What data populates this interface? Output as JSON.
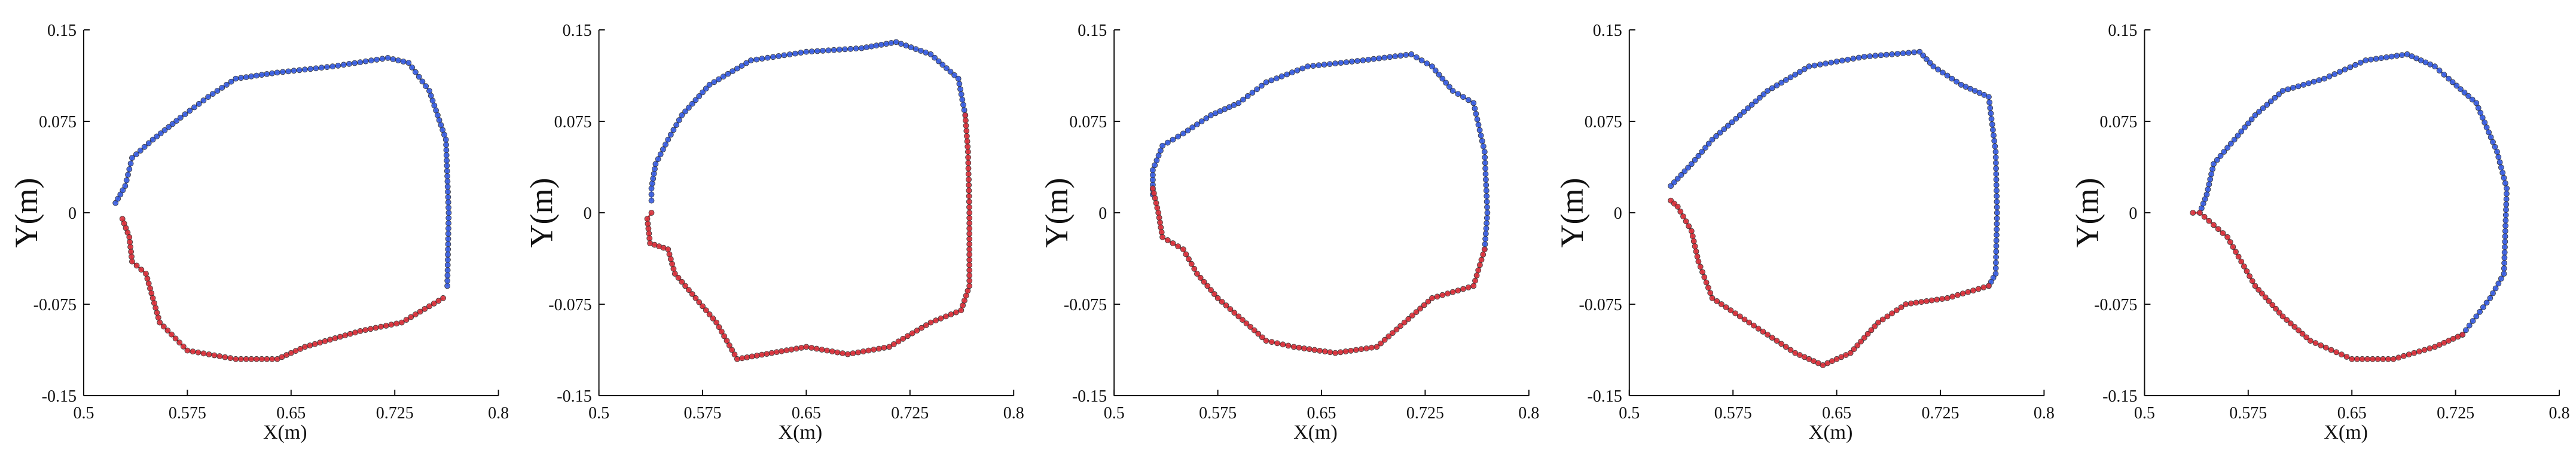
{
  "colors": {
    "upper": "#3b5fe0",
    "lower": "#d8323c",
    "axis": "#111111"
  },
  "chart_data": [
    {
      "type": "scatter",
      "xlabel": "X(m)",
      "ylabel": "Y(m)",
      "xlim": [
        0.5,
        0.8
      ],
      "ylim": [
        -0.15,
        0.15
      ],
      "xticks": [
        "0.5",
        "0.575",
        "0.65",
        "0.725",
        "0.8"
      ],
      "yticks": [
        "0.15",
        "0.075",
        "0",
        "-0.075",
        "-0.15"
      ],
      "series": [
        {
          "color": "upper",
          "points": [
            [
              0.523,
              0.008
            ],
            [
              0.53,
              0.022
            ],
            [
              0.535,
              0.045
            ],
            [
              0.55,
              0.06
            ],
            [
              0.57,
              0.078
            ],
            [
              0.59,
              0.095
            ],
            [
              0.61,
              0.11
            ],
            [
              0.64,
              0.115
            ],
            [
              0.68,
              0.12
            ],
            [
              0.72,
              0.127
            ],
            [
              0.735,
              0.123
            ],
            [
              0.75,
              0.1
            ],
            [
              0.762,
              0.06
            ],
            [
              0.764,
              0.0
            ],
            [
              0.763,
              -0.06
            ]
          ]
        },
        {
          "color": "lower",
          "points": [
            [
              0.528,
              -0.005
            ],
            [
              0.533,
              -0.02
            ],
            [
              0.535,
              -0.04
            ],
            [
              0.545,
              -0.05
            ],
            [
              0.55,
              -0.07
            ],
            [
              0.555,
              -0.09
            ],
            [
              0.575,
              -0.113
            ],
            [
              0.61,
              -0.12
            ],
            [
              0.64,
              -0.12
            ],
            [
              0.66,
              -0.11
            ],
            [
              0.7,
              -0.097
            ],
            [
              0.73,
              -0.09
            ],
            [
              0.76,
              -0.07
            ]
          ]
        }
      ]
    },
    {
      "type": "scatter",
      "xlabel": "X(m)",
      "ylabel": "Y(m)",
      "xlim": [
        0.5,
        0.8
      ],
      "ylim": [
        -0.15,
        0.15
      ],
      "xticks": [
        "0.5",
        "0.575",
        "0.65",
        "0.725",
        "0.8"
      ],
      "yticks": [
        "0.15",
        "0.075",
        "0",
        "-0.075",
        "-0.15"
      ],
      "series": [
        {
          "color": "upper",
          "points": [
            [
              0.538,
              0.01
            ],
            [
              0.538,
              0.02
            ],
            [
              0.541,
              0.04
            ],
            [
              0.55,
              0.06
            ],
            [
              0.56,
              0.08
            ],
            [
              0.58,
              0.105
            ],
            [
              0.61,
              0.125
            ],
            [
              0.65,
              0.132
            ],
            [
              0.69,
              0.135
            ],
            [
              0.715,
              0.14
            ],
            [
              0.74,
              0.13
            ],
            [
              0.76,
              0.11
            ],
            [
              0.765,
              0.08
            ]
          ]
        },
        {
          "color": "lower",
          "points": [
            [
              0.538,
              0.0
            ],
            [
              0.535,
              -0.005
            ],
            [
              0.537,
              -0.025
            ],
            [
              0.55,
              -0.03
            ],
            [
              0.555,
              -0.05
            ],
            [
              0.57,
              -0.07
            ],
            [
              0.585,
              -0.09
            ],
            [
              0.6,
              -0.12
            ],
            [
              0.625,
              -0.115
            ],
            [
              0.65,
              -0.11
            ],
            [
              0.68,
              -0.116
            ],
            [
              0.71,
              -0.11
            ],
            [
              0.74,
              -0.09
            ],
            [
              0.762,
              -0.08
            ],
            [
              0.768,
              -0.06
            ],
            [
              0.768,
              0.0
            ],
            [
              0.767,
              0.05
            ],
            [
              0.765,
              0.08
            ]
          ]
        }
      ]
    },
    {
      "type": "scatter",
      "xlabel": "X(m)",
      "ylabel": "Y(m)",
      "xlim": [
        0.5,
        0.8
      ],
      "ylim": [
        -0.15,
        0.15
      ],
      "xticks": [
        "0.5",
        "0.575",
        "0.65",
        "0.725",
        "0.8"
      ],
      "yticks": [
        "0.15",
        "0.075",
        "0",
        "-0.075",
        "-0.15"
      ],
      "series": [
        {
          "color": "upper",
          "points": [
            [
              0.528,
              0.015
            ],
            [
              0.528,
              0.035
            ],
            [
              0.535,
              0.055
            ],
            [
              0.55,
              0.065
            ],
            [
              0.57,
              0.08
            ],
            [
              0.59,
              0.09
            ],
            [
              0.61,
              0.107
            ],
            [
              0.64,
              0.12
            ],
            [
              0.68,
              0.125
            ],
            [
              0.715,
              0.13
            ],
            [
              0.73,
              0.12
            ],
            [
              0.745,
              0.1
            ],
            [
              0.76,
              0.09
            ],
            [
              0.768,
              0.05
            ],
            [
              0.77,
              0.0
            ],
            [
              0.768,
              -0.03
            ]
          ]
        },
        {
          "color": "lower",
          "points": [
            [
              0.528,
              0.02
            ],
            [
              0.532,
              0.0
            ],
            [
              0.535,
              -0.02
            ],
            [
              0.55,
              -0.03
            ],
            [
              0.56,
              -0.05
            ],
            [
              0.575,
              -0.07
            ],
            [
              0.59,
              -0.085
            ],
            [
              0.61,
              -0.105
            ],
            [
              0.63,
              -0.11
            ],
            [
              0.66,
              -0.115
            ],
            [
              0.69,
              -0.11
            ],
            [
              0.71,
              -0.09
            ],
            [
              0.73,
              -0.07
            ],
            [
              0.76,
              -0.06
            ],
            [
              0.768,
              -0.03
            ]
          ]
        }
      ]
    },
    {
      "type": "scatter",
      "xlabel": "X(m)",
      "ylabel": "Y(m)",
      "xlim": [
        0.5,
        0.8
      ],
      "ylim": [
        -0.15,
        0.15
      ],
      "xticks": [
        "0.5",
        "0.575",
        "0.65",
        "0.725",
        "0.8"
      ],
      "yticks": [
        "0.15",
        "0.075",
        "0",
        "-0.075",
        "-0.15"
      ],
      "series": [
        {
          "color": "upper",
          "points": [
            [
              0.53,
              0.022
            ],
            [
              0.545,
              0.04
            ],
            [
              0.56,
              0.06
            ],
            [
              0.58,
              0.08
            ],
            [
              0.6,
              0.1
            ],
            [
              0.63,
              0.12
            ],
            [
              0.67,
              0.128
            ],
            [
              0.71,
              0.132
            ],
            [
              0.72,
              0.12
            ],
            [
              0.74,
              0.105
            ],
            [
              0.76,
              0.095
            ],
            [
              0.765,
              0.05
            ],
            [
              0.766,
              0.0
            ],
            [
              0.765,
              -0.05
            ],
            [
              0.76,
              -0.06
            ]
          ]
        },
        {
          "color": "lower",
          "points": [
            [
              0.53,
              0.01
            ],
            [
              0.535,
              0.005
            ],
            [
              0.545,
              -0.015
            ],
            [
              0.55,
              -0.04
            ],
            [
              0.56,
              -0.07
            ],
            [
              0.58,
              -0.085
            ],
            [
              0.6,
              -0.1
            ],
            [
              0.62,
              -0.115
            ],
            [
              0.64,
              -0.125
            ],
            [
              0.66,
              -0.115
            ],
            [
              0.68,
              -0.09
            ],
            [
              0.7,
              -0.075
            ],
            [
              0.73,
              -0.07
            ],
            [
              0.76,
              -0.06
            ]
          ]
        }
      ]
    },
    {
      "type": "scatter",
      "xlabel": "X(m)",
      "ylabel": "Y(m)",
      "xlim": [
        0.5,
        0.8
      ],
      "ylim": [
        -0.15,
        0.15
      ],
      "xticks": [
        "0.5",
        "0.575",
        "0.65",
        "0.725",
        "0.8"
      ],
      "yticks": [
        "0.15",
        "0.075",
        "0",
        "-0.075",
        "-0.15"
      ],
      "series": [
        {
          "color": "upper",
          "points": [
            [
              0.54,
              0.0
            ],
            [
              0.545,
              0.015
            ],
            [
              0.55,
              0.04
            ],
            [
              0.565,
              0.06
            ],
            [
              0.58,
              0.08
            ],
            [
              0.6,
              0.1
            ],
            [
              0.63,
              0.11
            ],
            [
              0.66,
              0.125
            ],
            [
              0.69,
              0.13
            ],
            [
              0.71,
              0.12
            ],
            [
              0.72,
              0.11
            ],
            [
              0.74,
              0.09
            ],
            [
              0.755,
              0.05
            ],
            [
              0.762,
              0.02
            ],
            [
              0.76,
              -0.05
            ],
            [
              0.75,
              -0.07
            ],
            [
              0.74,
              -0.085
            ],
            [
              0.73,
              -0.1
            ]
          ]
        },
        {
          "color": "lower",
          "points": [
            [
              0.535,
              0.0
            ],
            [
              0.54,
              0.0
            ],
            [
              0.55,
              -0.01
            ],
            [
              0.56,
              -0.02
            ],
            [
              0.57,
              -0.04
            ],
            [
              0.58,
              -0.06
            ],
            [
              0.6,
              -0.085
            ],
            [
              0.62,
              -0.105
            ],
            [
              0.65,
              -0.12
            ],
            [
              0.68,
              -0.12
            ],
            [
              0.71,
              -0.11
            ],
            [
              0.73,
              -0.1
            ]
          ]
        }
      ]
    }
  ]
}
